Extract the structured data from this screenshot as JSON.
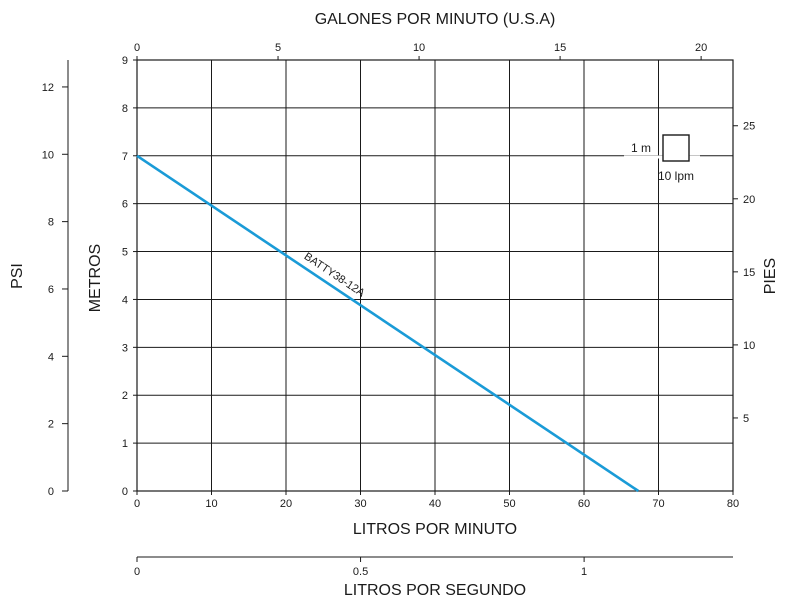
{
  "chart_data": {
    "type": "line",
    "axes": {
      "bottom": {
        "label": "LITROS POR MINUTO",
        "range": [
          0,
          80
        ],
        "ticks": [
          0,
          10,
          20,
          30,
          40,
          50,
          60,
          70,
          80
        ]
      },
      "top": {
        "label": "GALONES POR MINUTO (U.S.A)",
        "range": [
          0,
          21.13
        ],
        "ticks": [
          0,
          5,
          10,
          15,
          20
        ]
      },
      "left": {
        "label": "METROS",
        "range": [
          0,
          9
        ],
        "ticks": [
          0,
          1,
          2,
          3,
          4,
          5,
          6,
          7,
          8,
          9
        ]
      },
      "far_left": {
        "label": "PSI",
        "range": [
          0,
          12.8
        ],
        "ticks": [
          0,
          2,
          4,
          6,
          8,
          10,
          12
        ]
      },
      "right": {
        "label": "PIES",
        "range": [
          0,
          29.5
        ],
        "ticks": [
          5,
          10,
          15,
          20,
          25
        ]
      },
      "second_bottom": {
        "label": "LITROS POR SEGUNDO",
        "range": [
          0,
          1.333
        ],
        "ticks": [
          "0",
          "0.5",
          "1"
        ]
      }
    },
    "grid": true,
    "series": [
      {
        "name": "BATTY38-12A",
        "color": "#1a9bd7",
        "x": [
          0,
          67.3
        ],
        "y": [
          7.0,
          0.0
        ]
      }
    ],
    "scale_legend": {
      "vertical_label": "1 m",
      "horizontal_label": "10 lpm"
    }
  }
}
